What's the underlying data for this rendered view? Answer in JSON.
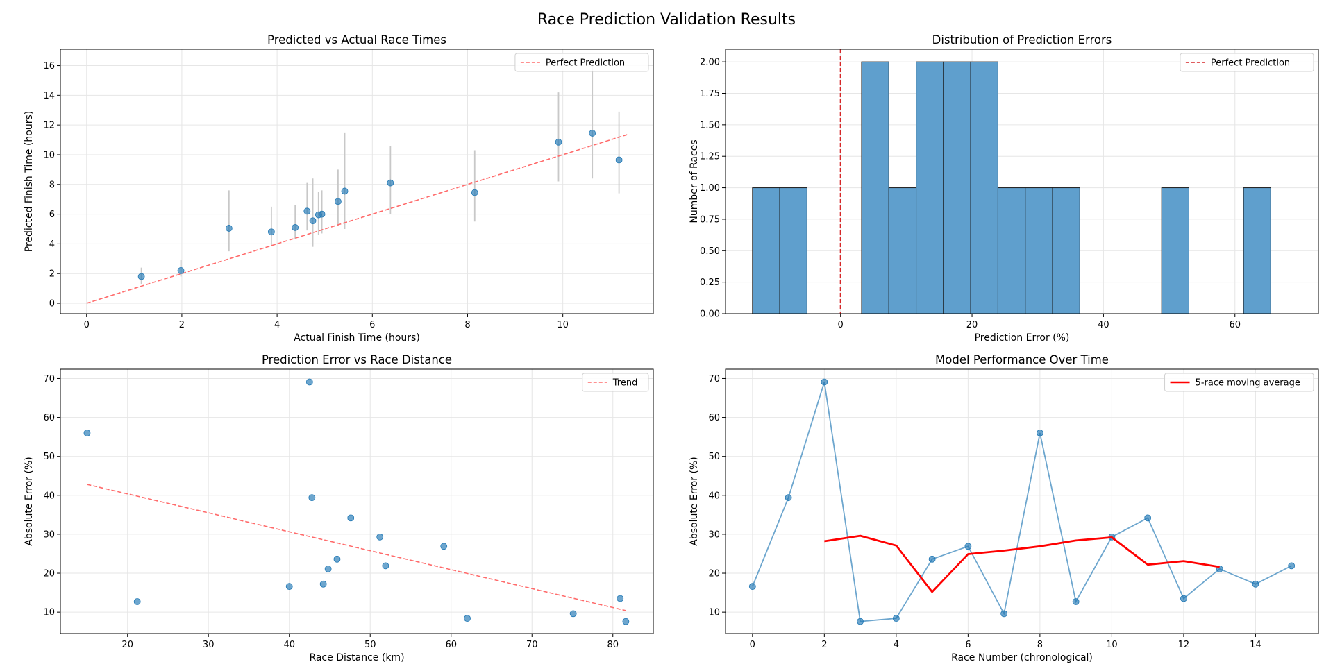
{
  "figure": {
    "suptitle": "Race Prediction Validation Results"
  },
  "chart_data": [
    {
      "type": "scatter",
      "title": "Predicted vs Actual Race Times",
      "xlabel": "Actual Finish Time (hours)",
      "ylabel": "Predicted Finish Time (hours)",
      "xlim": [
        -0.55,
        11.9
      ],
      "ylim": [
        -0.7,
        17.1
      ],
      "xticks": [
        0,
        2,
        4,
        6,
        8,
        10
      ],
      "yticks": [
        0,
        2,
        4,
        6,
        8,
        10,
        12,
        14,
        16
      ],
      "grid": true,
      "legend": {
        "location": "top-right",
        "entries": [
          {
            "label": "Perfect Prediction",
            "style": "dashed",
            "color": "#ff6b6b"
          }
        ]
      },
      "colors": {
        "points": "#1f77b4",
        "reference_line": "#ff6b6b",
        "error_bars": "#c8c8c8"
      },
      "reference_line": {
        "x": [
          0,
          11.35
        ],
        "y": [
          0,
          11.35
        ]
      },
      "points": [
        {
          "x": 1.15,
          "y": 1.8,
          "low": 1.3,
          "high": 2.4
        },
        {
          "x": 1.98,
          "y": 2.2,
          "low": 1.8,
          "high": 2.9
        },
        {
          "x": 2.99,
          "y": 5.05,
          "low": 3.5,
          "high": 7.6
        },
        {
          "x": 3.88,
          "y": 4.8,
          "low": 3.9,
          "high": 6.5
        },
        {
          "x": 4.38,
          "y": 5.1,
          "low": 4.3,
          "high": 6.6
        },
        {
          "x": 4.63,
          "y": 6.2,
          "low": 4.9,
          "high": 8.1
        },
        {
          "x": 4.75,
          "y": 5.55,
          "low": 3.8,
          "high": 8.4
        },
        {
          "x": 4.87,
          "y": 5.95,
          "low": 4.6,
          "high": 7.5
        },
        {
          "x": 4.94,
          "y": 6.0,
          "low": 4.7,
          "high": 7.6
        },
        {
          "x": 5.28,
          "y": 6.85,
          "low": 5.2,
          "high": 9.0
        },
        {
          "x": 5.42,
          "y": 7.55,
          "low": 5.0,
          "high": 11.5
        },
        {
          "x": 6.38,
          "y": 8.1,
          "low": 6.0,
          "high": 10.6
        },
        {
          "x": 8.15,
          "y": 7.45,
          "low": 5.5,
          "high": 10.3
        },
        {
          "x": 9.91,
          "y": 10.85,
          "low": 8.2,
          "high": 14.2
        },
        {
          "x": 10.62,
          "y": 11.45,
          "low": 8.4,
          "high": 16.0
        },
        {
          "x": 11.18,
          "y": 9.65,
          "low": 7.4,
          "high": 12.9
        }
      ]
    },
    {
      "type": "bar",
      "subtype": "histogram",
      "title": "Distribution of Prediction Errors",
      "xlabel": "Prediction Error (%)",
      "ylabel": "Number of Races",
      "xlim": [
        -17.5,
        72.7
      ],
      "ylim": [
        0,
        2.1
      ],
      "xticks": [
        0,
        20,
        40,
        60
      ],
      "yticks": [
        "0.00",
        "0.25",
        "0.50",
        "0.75",
        "1.00",
        "1.25",
        "1.50",
        "1.75",
        "2.00"
      ],
      "grid": true,
      "legend": {
        "location": "top-right",
        "entries": [
          {
            "label": "Perfect Prediction",
            "style": "dashed",
            "color": "#d62728"
          }
        ]
      },
      "colors": {
        "bars": "#5f9fcd",
        "bar_edge": "#1a1a1a",
        "reference_line": "#d62728"
      },
      "reference_line_x": 0,
      "bin_start": -13.4,
      "bin_width": 4.15,
      "counts": [
        1,
        1,
        0,
        0,
        2,
        1,
        2,
        2,
        2,
        1,
        1,
        1,
        0,
        0,
        0,
        1,
        0,
        0,
        1
      ]
    },
    {
      "type": "scatter",
      "title": "Prediction Error vs Race Distance",
      "xlabel": "Race Distance (km)",
      "ylabel": "Absolute Error (%)",
      "xlim": [
        11.7,
        85.0
      ],
      "ylim": [
        4.5,
        72.4
      ],
      "xticks": [
        20,
        30,
        40,
        50,
        60,
        70,
        80
      ],
      "yticks": [
        10,
        20,
        30,
        40,
        50,
        60,
        70
      ],
      "grid": true,
      "legend": {
        "location": "top-right",
        "entries": [
          {
            "label": "Trend",
            "style": "dashed",
            "color": "#ff6b6b"
          }
        ]
      },
      "colors": {
        "points": "#1f77b4",
        "trend": "#ff6b6b"
      },
      "trend": {
        "x": [
          15.0,
          81.6
        ],
        "y": [
          42.8,
          10.4
        ]
      },
      "x": [
        15.0,
        21.2,
        40.0,
        42.5,
        42.8,
        44.2,
        44.8,
        45.9,
        47.6,
        51.2,
        51.9,
        59.1,
        62.0,
        75.1,
        80.9,
        81.6
      ],
      "y": [
        56.0,
        12.7,
        16.6,
        69.1,
        39.4,
        17.2,
        21.1,
        23.6,
        34.2,
        29.3,
        21.9,
        26.9,
        8.4,
        9.6,
        13.5,
        7.6
      ]
    },
    {
      "type": "line",
      "title": "Model Performance Over Time",
      "xlabel": "Race Number (chronological)",
      "ylabel": "Absolute Error (%)",
      "xlim": [
        -0.75,
        15.75
      ],
      "ylim": [
        4.5,
        72.4
      ],
      "xticks": [
        0,
        2,
        4,
        6,
        8,
        10,
        12,
        14
      ],
      "yticks": [
        10,
        20,
        30,
        40,
        50,
        60,
        70
      ],
      "grid": true,
      "legend": {
        "location": "top-right",
        "entries": [
          {
            "label": "5-race moving average",
            "style": "solid",
            "color": "#ff0000"
          }
        ]
      },
      "series": [
        {
          "color": "#1f77b4",
          "markers": true,
          "x": [
            0,
            1,
            2,
            3,
            4,
            5,
            6,
            7,
            8,
            9,
            10,
            11,
            12,
            13,
            14,
            15
          ],
          "values": [
            16.6,
            39.4,
            69.1,
            7.6,
            8.4,
            23.6,
            26.9,
            9.6,
            56.0,
            12.7,
            29.3,
            34.2,
            13.5,
            21.1,
            17.2,
            21.9
          ]
        },
        {
          "name": "5-race moving average",
          "color": "#ff0000",
          "markers": false,
          "x": [
            2,
            3,
            4,
            5,
            6,
            7,
            8,
            9,
            10,
            11,
            12,
            13
          ],
          "values": [
            28.2,
            29.6,
            27.1,
            15.2,
            24.9,
            25.8,
            26.9,
            28.4,
            29.2,
            22.2,
            23.1,
            21.6
          ]
        }
      ]
    }
  ]
}
